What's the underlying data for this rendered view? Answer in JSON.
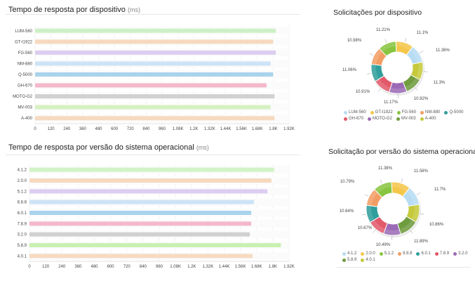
{
  "chart_data": [
    {
      "type": "bar",
      "orientation": "horizontal",
      "title": "Tempo de resposta por dispositivo",
      "unit": "(ms)",
      "categories": [
        "LUM-560",
        "GT-I1922",
        "FG-560",
        "NM-880",
        "Q-5000",
        "GH-670",
        "MOTO-G2",
        "MV-003",
        "A-400"
      ],
      "values": [
        1820,
        1800,
        1820,
        1780,
        1800,
        1750,
        1810,
        1780,
        1810
      ],
      "colors": [
        "#cdf0c6",
        "#f6d9be",
        "#dccdf1",
        "#cde3f6",
        "#a9d3ec",
        "#f4b8ca",
        "#d1d1d1",
        "#d6f1c1",
        "#f5dac1"
      ],
      "xticks": [
        "0",
        "120",
        "240",
        "360",
        "480",
        "600",
        "720",
        "840",
        "960",
        "1.08K",
        "1.2K",
        "1.32K",
        "1.44K",
        "1.56K",
        "1.68K",
        "1.8K",
        "1.92K"
      ],
      "xlim": [
        0,
        1920
      ]
    },
    {
      "type": "bar",
      "orientation": "horizontal",
      "title": "Tempo de resposta por versão do sistema operacional",
      "unit": "(ms)",
      "categories": [
        "4.1.2",
        "2.0.0",
        "5.1.2",
        "8.8.8",
        "6.0.1",
        "7.8.9",
        "3.2.0",
        "5.8.9",
        "4.0.1"
      ],
      "values": [
        1810,
        1790,
        1760,
        1660,
        1640,
        1640,
        1630,
        1860,
        1650
      ],
      "colors": [
        "#d2f3c6",
        "#f6d9be",
        "#dccdf1",
        "#cde3f6",
        "#a9d3ec",
        "#f4b8ca",
        "#d1d1d1",
        "#c9f0b2",
        "#f5dac1"
      ],
      "xticks": [
        "0",
        "120",
        "240",
        "360",
        "480",
        "600",
        "720",
        "840",
        "960",
        "1.08K",
        "1.2K",
        "1.32K",
        "1.44K",
        "1.56K",
        "1.68K",
        "1.8K",
        "1.92K"
      ],
      "xlim": [
        0,
        1920
      ]
    },
    {
      "type": "pie",
      "donut": true,
      "title": "Solicitações por dispositivo",
      "labels": [
        "LUM-560",
        "GT-I1922",
        "FG-560",
        "NM-880",
        "Q-5000",
        "GH-670",
        "MOTO-G2",
        "MV-003",
        "A-400"
      ],
      "values": [
        11.1,
        11.36,
        11.3,
        10.92,
        11.17,
        10.91,
        11.06,
        10.98,
        11.21
      ],
      "value_labels": [
        "11.1%",
        "11.36%",
        "11.3%",
        "10.92%",
        "11.17%",
        "10.91%",
        "11.06%",
        "10.98%",
        "11.21%"
      ],
      "colors": [
        "#f4c64a",
        "#b7dcf3",
        "#c5c93b",
        "#6f9c3e",
        "#9b6ab6",
        "#e2596a",
        "#2f9e9c",
        "#f29d64",
        "#88c540"
      ],
      "legend": [
        {
          "label": "LUM-560",
          "color": "#b7dcf3"
        },
        {
          "label": "GT-I1922",
          "color": "#f4c64a"
        },
        {
          "label": "FG-560",
          "color": "#88c540"
        },
        {
          "label": "NM-880",
          "color": "#f29d64"
        },
        {
          "label": "Q-5000",
          "color": "#2f9e9c"
        },
        {
          "label": "GH-670",
          "color": "#e2596a"
        },
        {
          "label": "MOTO-G2",
          "color": "#9b6ab6"
        },
        {
          "label": "MV-003",
          "color": "#6f9c3e"
        },
        {
          "label": "A-400",
          "color": "#c5c93b"
        }
      ]
    },
    {
      "type": "pie",
      "donut": true,
      "title": "Solicitação por versão do sistema operacional",
      "labels": [
        "4.1.2",
        "2.0.0",
        "5.1.2",
        "8.8.8",
        "6.0.1",
        "7.8.9",
        "3.2.0",
        "5.8.9",
        "4.0.1"
      ],
      "values": [
        11.58,
        11.7,
        10.86,
        11.89,
        10.49,
        10.67,
        10.64,
        10.79,
        11.38
      ],
      "value_labels": [
        "11.58%",
        "11.7%",
        "10.86%",
        "11.89%",
        "10.49%",
        "10.67%",
        "10.64%",
        "10.79%",
        "11.38%"
      ],
      "colors": [
        "#f4c64a",
        "#b7dcf3",
        "#c5c93b",
        "#6f9c3e",
        "#9b6ab6",
        "#e2596a",
        "#2f9e9c",
        "#f29d64",
        "#88c540"
      ],
      "legend": [
        {
          "label": "4.1.2",
          "color": "#b7dcf3"
        },
        {
          "label": "2.0.0",
          "color": "#f4c64a"
        },
        {
          "label": "5.1.2",
          "color": "#88c540"
        },
        {
          "label": "8.8.8",
          "color": "#f29d64"
        },
        {
          "label": "6.0.1",
          "color": "#2f9e9c"
        },
        {
          "label": "7.8.9",
          "color": "#e2596a"
        },
        {
          "label": "3.2.0",
          "color": "#9b6ab6"
        },
        {
          "label": "5.8.9",
          "color": "#6f9c3e"
        },
        {
          "label": "4.0.1",
          "color": "#c5c93b"
        }
      ]
    }
  ]
}
